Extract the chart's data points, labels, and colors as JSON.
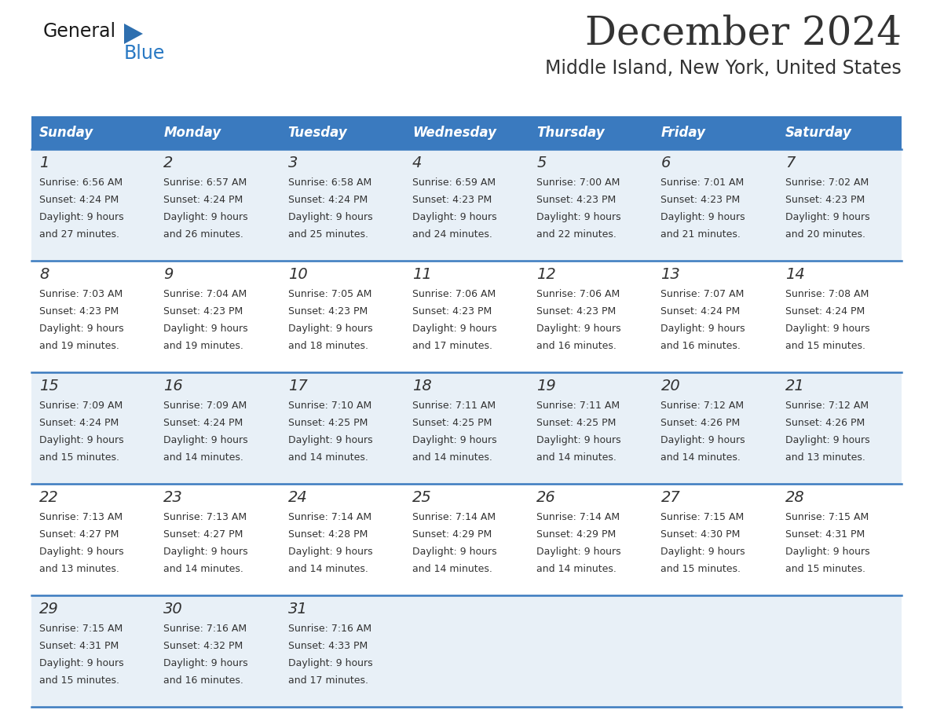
{
  "title": "December 2024",
  "subtitle": "Middle Island, New York, United States",
  "header_color": "#3a7abf",
  "header_text_color": "#ffffff",
  "days_of_week": [
    "Sunday",
    "Monday",
    "Tuesday",
    "Wednesday",
    "Thursday",
    "Friday",
    "Saturday"
  ],
  "weeks": [
    [
      {
        "day": 1,
        "sunrise": "6:56 AM",
        "sunset": "4:24 PM",
        "daylight_hours": 9,
        "daylight_minutes": 27
      },
      {
        "day": 2,
        "sunrise": "6:57 AM",
        "sunset": "4:24 PM",
        "daylight_hours": 9,
        "daylight_minutes": 26
      },
      {
        "day": 3,
        "sunrise": "6:58 AM",
        "sunset": "4:24 PM",
        "daylight_hours": 9,
        "daylight_minutes": 25
      },
      {
        "day": 4,
        "sunrise": "6:59 AM",
        "sunset": "4:23 PM",
        "daylight_hours": 9,
        "daylight_minutes": 24
      },
      {
        "day": 5,
        "sunrise": "7:00 AM",
        "sunset": "4:23 PM",
        "daylight_hours": 9,
        "daylight_minutes": 22
      },
      {
        "day": 6,
        "sunrise": "7:01 AM",
        "sunset": "4:23 PM",
        "daylight_hours": 9,
        "daylight_minutes": 21
      },
      {
        "day": 7,
        "sunrise": "7:02 AM",
        "sunset": "4:23 PM",
        "daylight_hours": 9,
        "daylight_minutes": 20
      }
    ],
    [
      {
        "day": 8,
        "sunrise": "7:03 AM",
        "sunset": "4:23 PM",
        "daylight_hours": 9,
        "daylight_minutes": 19
      },
      {
        "day": 9,
        "sunrise": "7:04 AM",
        "sunset": "4:23 PM",
        "daylight_hours": 9,
        "daylight_minutes": 19
      },
      {
        "day": 10,
        "sunrise": "7:05 AM",
        "sunset": "4:23 PM",
        "daylight_hours": 9,
        "daylight_minutes": 18
      },
      {
        "day": 11,
        "sunrise": "7:06 AM",
        "sunset": "4:23 PM",
        "daylight_hours": 9,
        "daylight_minutes": 17
      },
      {
        "day": 12,
        "sunrise": "7:06 AM",
        "sunset": "4:23 PM",
        "daylight_hours": 9,
        "daylight_minutes": 16
      },
      {
        "day": 13,
        "sunrise": "7:07 AM",
        "sunset": "4:24 PM",
        "daylight_hours": 9,
        "daylight_minutes": 16
      },
      {
        "day": 14,
        "sunrise": "7:08 AM",
        "sunset": "4:24 PM",
        "daylight_hours": 9,
        "daylight_minutes": 15
      }
    ],
    [
      {
        "day": 15,
        "sunrise": "7:09 AM",
        "sunset": "4:24 PM",
        "daylight_hours": 9,
        "daylight_minutes": 15
      },
      {
        "day": 16,
        "sunrise": "7:09 AM",
        "sunset": "4:24 PM",
        "daylight_hours": 9,
        "daylight_minutes": 14
      },
      {
        "day": 17,
        "sunrise": "7:10 AM",
        "sunset": "4:25 PM",
        "daylight_hours": 9,
        "daylight_minutes": 14
      },
      {
        "day": 18,
        "sunrise": "7:11 AM",
        "sunset": "4:25 PM",
        "daylight_hours": 9,
        "daylight_minutes": 14
      },
      {
        "day": 19,
        "sunrise": "7:11 AM",
        "sunset": "4:25 PM",
        "daylight_hours": 9,
        "daylight_minutes": 14
      },
      {
        "day": 20,
        "sunrise": "7:12 AM",
        "sunset": "4:26 PM",
        "daylight_hours": 9,
        "daylight_minutes": 14
      },
      {
        "day": 21,
        "sunrise": "7:12 AM",
        "sunset": "4:26 PM",
        "daylight_hours": 9,
        "daylight_minutes": 13
      }
    ],
    [
      {
        "day": 22,
        "sunrise": "7:13 AM",
        "sunset": "4:27 PM",
        "daylight_hours": 9,
        "daylight_minutes": 13
      },
      {
        "day": 23,
        "sunrise": "7:13 AM",
        "sunset": "4:27 PM",
        "daylight_hours": 9,
        "daylight_minutes": 14
      },
      {
        "day": 24,
        "sunrise": "7:14 AM",
        "sunset": "4:28 PM",
        "daylight_hours": 9,
        "daylight_minutes": 14
      },
      {
        "day": 25,
        "sunrise": "7:14 AM",
        "sunset": "4:29 PM",
        "daylight_hours": 9,
        "daylight_minutes": 14
      },
      {
        "day": 26,
        "sunrise": "7:14 AM",
        "sunset": "4:29 PM",
        "daylight_hours": 9,
        "daylight_minutes": 14
      },
      {
        "day": 27,
        "sunrise": "7:15 AM",
        "sunset": "4:30 PM",
        "daylight_hours": 9,
        "daylight_minutes": 15
      },
      {
        "day": 28,
        "sunrise": "7:15 AM",
        "sunset": "4:31 PM",
        "daylight_hours": 9,
        "daylight_minutes": 15
      }
    ],
    [
      {
        "day": 29,
        "sunrise": "7:15 AM",
        "sunset": "4:31 PM",
        "daylight_hours": 9,
        "daylight_minutes": 15
      },
      {
        "day": 30,
        "sunrise": "7:16 AM",
        "sunset": "4:32 PM",
        "daylight_hours": 9,
        "daylight_minutes": 16
      },
      {
        "day": 31,
        "sunrise": "7:16 AM",
        "sunset": "4:33 PM",
        "daylight_hours": 9,
        "daylight_minutes": 17
      },
      null,
      null,
      null,
      null
    ]
  ],
  "bg_color": "#ffffff",
  "cell_bg_color": "#e8f0f7",
  "text_color": "#333333",
  "border_color": "#3a7abf",
  "logo_general_color": "#1a1a1a",
  "logo_blue_color": "#2878c3",
  "logo_triangle_color": "#2e6faf"
}
